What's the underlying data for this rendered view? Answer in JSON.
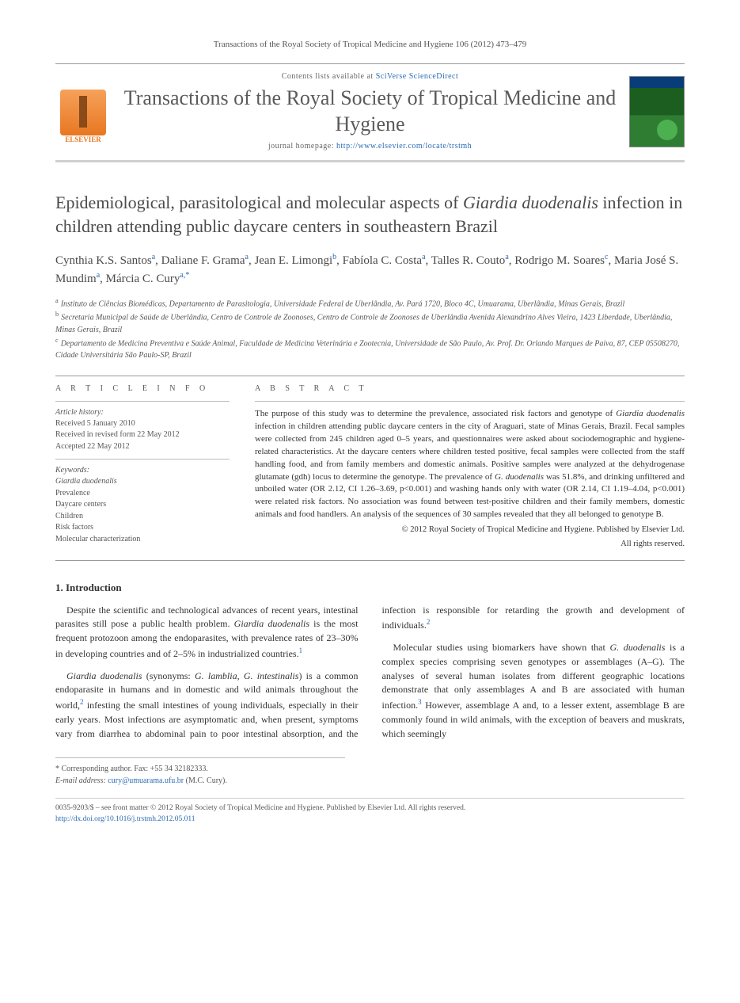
{
  "citation": "Transactions of the Royal Society of Tropical Medicine and Hygiene 106 (2012) 473–479",
  "header": {
    "contents_prefix": "Contents lists available at ",
    "contents_link": "SciVerse ScienceDirect",
    "journal": "Transactions of the Royal Society of Tropical Medicine and Hygiene",
    "homepage_prefix": "journal homepage: ",
    "homepage_url": "http://www.elsevier.com/locate/trstmh",
    "publisher_logo_label": "ELSEVIER"
  },
  "title_html": "Epidemiological, parasitological and molecular aspects of <em>Giardia duodenalis</em> infection in children attending public daycare centers in southeastern Brazil",
  "authors_html": "Cynthia K.S. Santos<sup>a</sup>, Daliane F. Grama<sup>a</sup>, Jean E. Limongi<sup>b</sup>, Fabíola C. Costa<sup>a</sup>, Talles R. Couto<sup>a</sup>, Rodrigo M. Soares<sup>c</sup>, Maria José S. Mundim<sup>a</sup>, Márcia C. Cury<sup>a,*</sup>",
  "affiliations": [
    {
      "sup": "a",
      "text": "Instituto de Ciências Biomédicas, Departamento de Parasitologia, Universidade Federal de Uberlândia, Av. Pará 1720, Bloco 4C, Umuarama, Uberlândia, Minas Gerais, Brazil"
    },
    {
      "sup": "b",
      "text": "Secretaria Municipal de Saúde de Uberlândia, Centro de Controle de Zoonoses, Centro de Controle de Zoonoses de Uberlândia Avenida Alexandrino Alves Vieira, 1423 Liberdade, Uberlândia, Minas Gerais, Brazil"
    },
    {
      "sup": "c",
      "text": "Departamento de Medicina Preventiva e Saúde Animal, Faculdade de Medicina Veterinária e Zootecnia, Universidade de São Paulo, Av. Prof. Dr. Orlando Marques de Paiva, 87, CEP 05508270, Cidade Universitária São Paulo-SP, Brazil"
    }
  ],
  "article_info": {
    "head": "A R T I C L E   I N F O",
    "history_head": "Article history:",
    "history": [
      "Received 5 January 2010",
      "Received in revised form 22 May 2012",
      "Accepted 22 May 2012"
    ],
    "keywords_head": "Keywords:",
    "keywords": [
      "Giardia duodenalis",
      "Prevalence",
      "Daycare centers",
      "Children",
      "Risk factors",
      "Molecular characterization"
    ]
  },
  "abstract": {
    "head": "A B S T R A C T",
    "text_html": "The purpose of this study was to determine the prevalence, associated risk factors and genotype of <em>Giardia duodenalis</em> infection in children attending public daycare centers in the city of Araguari, state of Minas Gerais, Brazil. Fecal samples were collected from 245 children aged 0–5 years, and questionnaires were asked about sociodemographic and hygiene-related characteristics. At the daycare centers where children tested positive, fecal samples were collected from the staff handling food, and from family members and domestic animals. Positive samples were analyzed at the dehydrogenase glutamate (gdh) locus to determine the genotype. The prevalence of <em>G. duodenalis</em> was 51.8%, and drinking unfiltered and unboiled water (OR 2.12, CI 1.26–3.69, p<0.001) and washing hands only with water (OR 2.14, CI 1.19–4.04, p<0.001) were related risk factors. No association was found between test-positive children and their family members, domestic animals and food handlers. An analysis of the sequences of 30 samples revealed that they all belonged to genotype B.",
    "copyright1": "© 2012 Royal Society of Tropical Medicine and Hygiene. Published by Elsevier Ltd.",
    "copyright2": "All rights reserved."
  },
  "section1_head": "1.  Introduction",
  "body": {
    "p1_html": "Despite the scientific and technological advances of recent years, intestinal parasites still pose a public health problem. <em>Giardia duodenalis</em> is the most frequent protozoon among the endoparasites, with prevalence rates of 23–30% in developing countries and of 2–5% in industrialized countries.<sup class=\"ref\">1</sup>",
    "p2_html": "<em>Giardia duodenalis</em> (synonyms: <em>G. lamblia</em>, <em>G. intestinalis</em>) is a common endoparasite in humans and in domestic and wild animals throughout the world,<sup class=\"ref\">2</sup> infesting the small intestines of young individuals, especially in their early years. Most infections are asymptomatic and, when present, symptoms vary from diarrhea to abdominal pain to poor intestinal absorption, and the infection is responsible for retarding the growth and development of individuals.<sup class=\"ref\">2</sup>",
    "p3_html": "Molecular studies using biomarkers have shown that <em>G. duodenalis</em> is a complex species comprising seven genotypes or assemblages (A–G). The analyses of several human isolates from different geographic locations demonstrate that only assemblages A and B are associated with human infection.<sup class=\"ref\">3</sup> However, assemblage A and, to a lesser extent, assemblage B are commonly found in wild animals, with the exception of beavers and muskrats, which seemingly"
  },
  "corresp": {
    "line1": "* Corresponding author. Fax: +55 34 32182333.",
    "email_label": "E-mail address: ",
    "email": "cury@umuarama.ufu.br",
    "email_tail": " (M.C. Cury)."
  },
  "footer": {
    "line1": "0035-9203/$ – see front matter © 2012 Royal Society of Tropical Medicine and Hygiene. Published by Elsevier Ltd. All rights reserved.",
    "doi": "http://dx.doi.org/10.1016/j.trstmh.2012.05.011"
  },
  "colors": {
    "link": "#2a6bb3",
    "elsevier_orange": "#e87722",
    "text": "#333333",
    "muted": "#555555"
  }
}
